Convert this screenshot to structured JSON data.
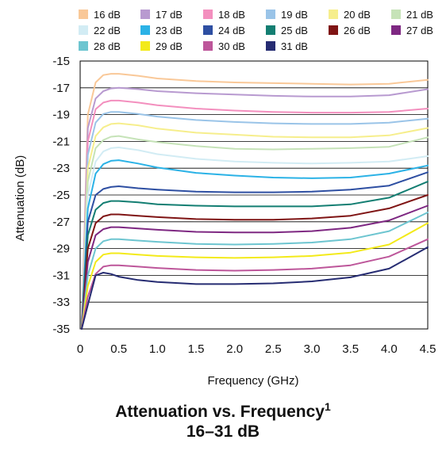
{
  "caption": {
    "title": "Attenuation vs. Frequency",
    "footnote_mark": "1",
    "subtitle": "16–31 dB"
  },
  "chart_data": {
    "type": "line",
    "xlabel": "Frequency (GHz)",
    "ylabel": "Attenuation (dB)",
    "xlim": [
      0,
      4.5
    ],
    "ylim": [
      -35,
      -15
    ],
    "x_ticks": [
      "0",
      "0.5",
      "1.0",
      "1.5",
      "2.0",
      "2.5",
      "3.0",
      "3.5",
      "4.0",
      "4.5"
    ],
    "y_ticks": [
      "-15",
      "-17",
      "-19",
      "-21",
      "-23",
      "-25",
      "-27",
      "-29",
      "-31",
      "-33",
      "-35"
    ],
    "x_tick_values": [
      0,
      0.5,
      1.0,
      1.5,
      2.0,
      2.5,
      3.0,
      3.5,
      4.0,
      4.5
    ],
    "y_tick_values": [
      -15,
      -17,
      -19,
      -21,
      -23,
      -25,
      -27,
      -29,
      -31,
      -33,
      -35
    ],
    "grid": "horizontal",
    "legend_position": "top",
    "x": [
      0.02,
      0.1,
      0.2,
      0.3,
      0.4,
      0.5,
      0.75,
      1.0,
      1.5,
      2.0,
      2.5,
      3.0,
      3.5,
      4.0,
      4.5
    ],
    "series": [
      {
        "name": "16 dB",
        "color": "#f9c898",
        "values": [
          -35,
          -19.0,
          -16.6,
          -16.05,
          -15.95,
          -15.95,
          -16.1,
          -16.3,
          -16.5,
          -16.6,
          -16.65,
          -16.7,
          -16.75,
          -16.7,
          -16.4
        ]
      },
      {
        "name": "17 dB",
        "color": "#b89ad0",
        "values": [
          -35,
          -20.0,
          -17.8,
          -17.25,
          -17.05,
          -17.0,
          -17.1,
          -17.25,
          -17.4,
          -17.5,
          -17.6,
          -17.65,
          -17.65,
          -17.55,
          -17.1
        ]
      },
      {
        "name": "18 dB",
        "color": "#f38fbe",
        "values": [
          -35,
          -21.0,
          -18.6,
          -18.1,
          -17.95,
          -17.95,
          -18.1,
          -18.3,
          -18.55,
          -18.7,
          -18.8,
          -18.85,
          -18.85,
          -18.8,
          -18.55
        ]
      },
      {
        "name": "19 dB",
        "color": "#9ac4e8",
        "values": [
          -35,
          -22.0,
          -19.6,
          -18.95,
          -18.8,
          -18.8,
          -18.95,
          -19.15,
          -19.4,
          -19.55,
          -19.65,
          -19.7,
          -19.7,
          -19.6,
          -19.3
        ]
      },
      {
        "name": "20 dB",
        "color": "#f6ee8c",
        "values": [
          -35,
          -23.0,
          -20.6,
          -19.95,
          -19.7,
          -19.65,
          -19.8,
          -20.05,
          -20.35,
          -20.5,
          -20.65,
          -20.7,
          -20.7,
          -20.55,
          -20.0
        ]
      },
      {
        "name": "21 dB",
        "color": "#c6e3b8",
        "values": [
          -35,
          -24.0,
          -21.5,
          -20.9,
          -20.65,
          -20.6,
          -20.85,
          -21.05,
          -21.35,
          -21.55,
          -21.6,
          -21.55,
          -21.5,
          -21.4,
          -20.7
        ]
      },
      {
        "name": "22 dB",
        "color": "#d2ecf4",
        "values": [
          -35,
          -25.0,
          -22.5,
          -21.75,
          -21.5,
          -21.45,
          -21.65,
          -21.95,
          -22.3,
          -22.5,
          -22.6,
          -22.65,
          -22.6,
          -22.5,
          -22.1
        ]
      },
      {
        "name": "23 dB",
        "color": "#2bb2e6",
        "values": [
          -35,
          -26.0,
          -23.4,
          -22.7,
          -22.45,
          -22.4,
          -22.65,
          -22.95,
          -23.35,
          -23.55,
          -23.7,
          -23.75,
          -23.7,
          -23.4,
          -22.8
        ]
      },
      {
        "name": "24 dB",
        "color": "#2e4fa2",
        "values": [
          -35,
          -27.0,
          -25.0,
          -24.55,
          -24.4,
          -24.35,
          -24.5,
          -24.6,
          -24.75,
          -24.8,
          -24.8,
          -24.75,
          -24.6,
          -24.3,
          -23.3
        ]
      },
      {
        "name": "25 dB",
        "color": "#137e72",
        "values": [
          -35,
          -28.0,
          -26.1,
          -25.6,
          -25.45,
          -25.45,
          -25.55,
          -25.7,
          -25.8,
          -25.85,
          -25.85,
          -25.85,
          -25.7,
          -25.2,
          -24.0
        ]
      },
      {
        "name": "26 dB",
        "color": "#7f1414",
        "values": [
          -35,
          -29.0,
          -27.1,
          -26.6,
          -26.45,
          -26.45,
          -26.55,
          -26.65,
          -26.8,
          -26.85,
          -26.85,
          -26.75,
          -26.55,
          -26.0,
          -25.0
        ]
      },
      {
        "name": "27 dB",
        "color": "#7e2882",
        "values": [
          -35,
          -30.0,
          -28.0,
          -27.55,
          -27.4,
          -27.4,
          -27.5,
          -27.6,
          -27.75,
          -27.8,
          -27.8,
          -27.7,
          -27.45,
          -26.9,
          -25.8
        ]
      },
      {
        "name": "28 dB",
        "color": "#6dc5d0",
        "values": [
          -35,
          -31.0,
          -29.0,
          -28.45,
          -28.3,
          -28.3,
          -28.4,
          -28.5,
          -28.65,
          -28.7,
          -28.65,
          -28.55,
          -28.3,
          -27.7,
          -26.3
        ]
      },
      {
        "name": "29 dB",
        "color": "#f3ea1a",
        "values": [
          -35,
          -31.8,
          -30.0,
          -29.45,
          -29.35,
          -29.35,
          -29.45,
          -29.55,
          -29.65,
          -29.7,
          -29.65,
          -29.55,
          -29.3,
          -28.7,
          -27.1
        ]
      },
      {
        "name": "30 dB",
        "color": "#bd569a",
        "values": [
          -35,
          -32.6,
          -30.9,
          -30.35,
          -30.25,
          -30.25,
          -30.35,
          -30.45,
          -30.6,
          -30.65,
          -30.6,
          -30.5,
          -30.25,
          -29.6,
          -28.3
        ]
      },
      {
        "name": "31 dB",
        "color": "#262c72",
        "values": [
          -35,
          -33.2,
          -31.0,
          -30.8,
          -30.9,
          -31.1,
          -31.35,
          -31.5,
          -31.65,
          -31.65,
          -31.6,
          -31.45,
          -31.15,
          -30.5,
          -28.9
        ]
      }
    ]
  }
}
